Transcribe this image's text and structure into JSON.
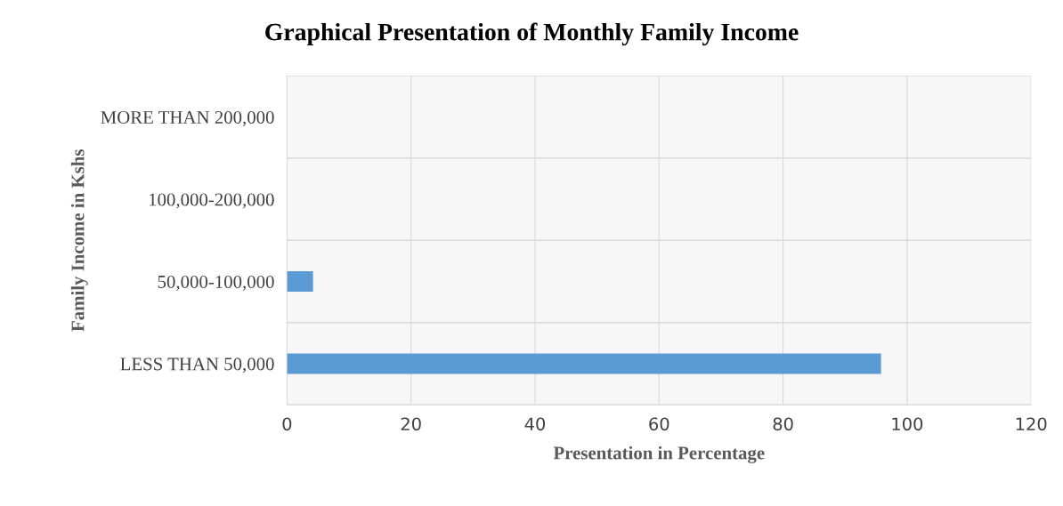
{
  "chart_data": {
    "type": "bar",
    "orientation": "horizontal",
    "title": "Graphical Presentation of Monthly Family Income",
    "xlabel": "Presentation in Percentage",
    "ylabel": "Family Income in Kshs",
    "categories": [
      "MORE THAN 200,000",
      "100,000-200,000",
      "50,000-100,000",
      "LESS THAN 50,000"
    ],
    "values": [
      0,
      0,
      4.2,
      95.8
    ],
    "color": "#5b9bd5",
    "xlim": [
      0,
      120
    ],
    "xticks": [
      0,
      20,
      40,
      60,
      80,
      100,
      120
    ],
    "grid": true
  }
}
